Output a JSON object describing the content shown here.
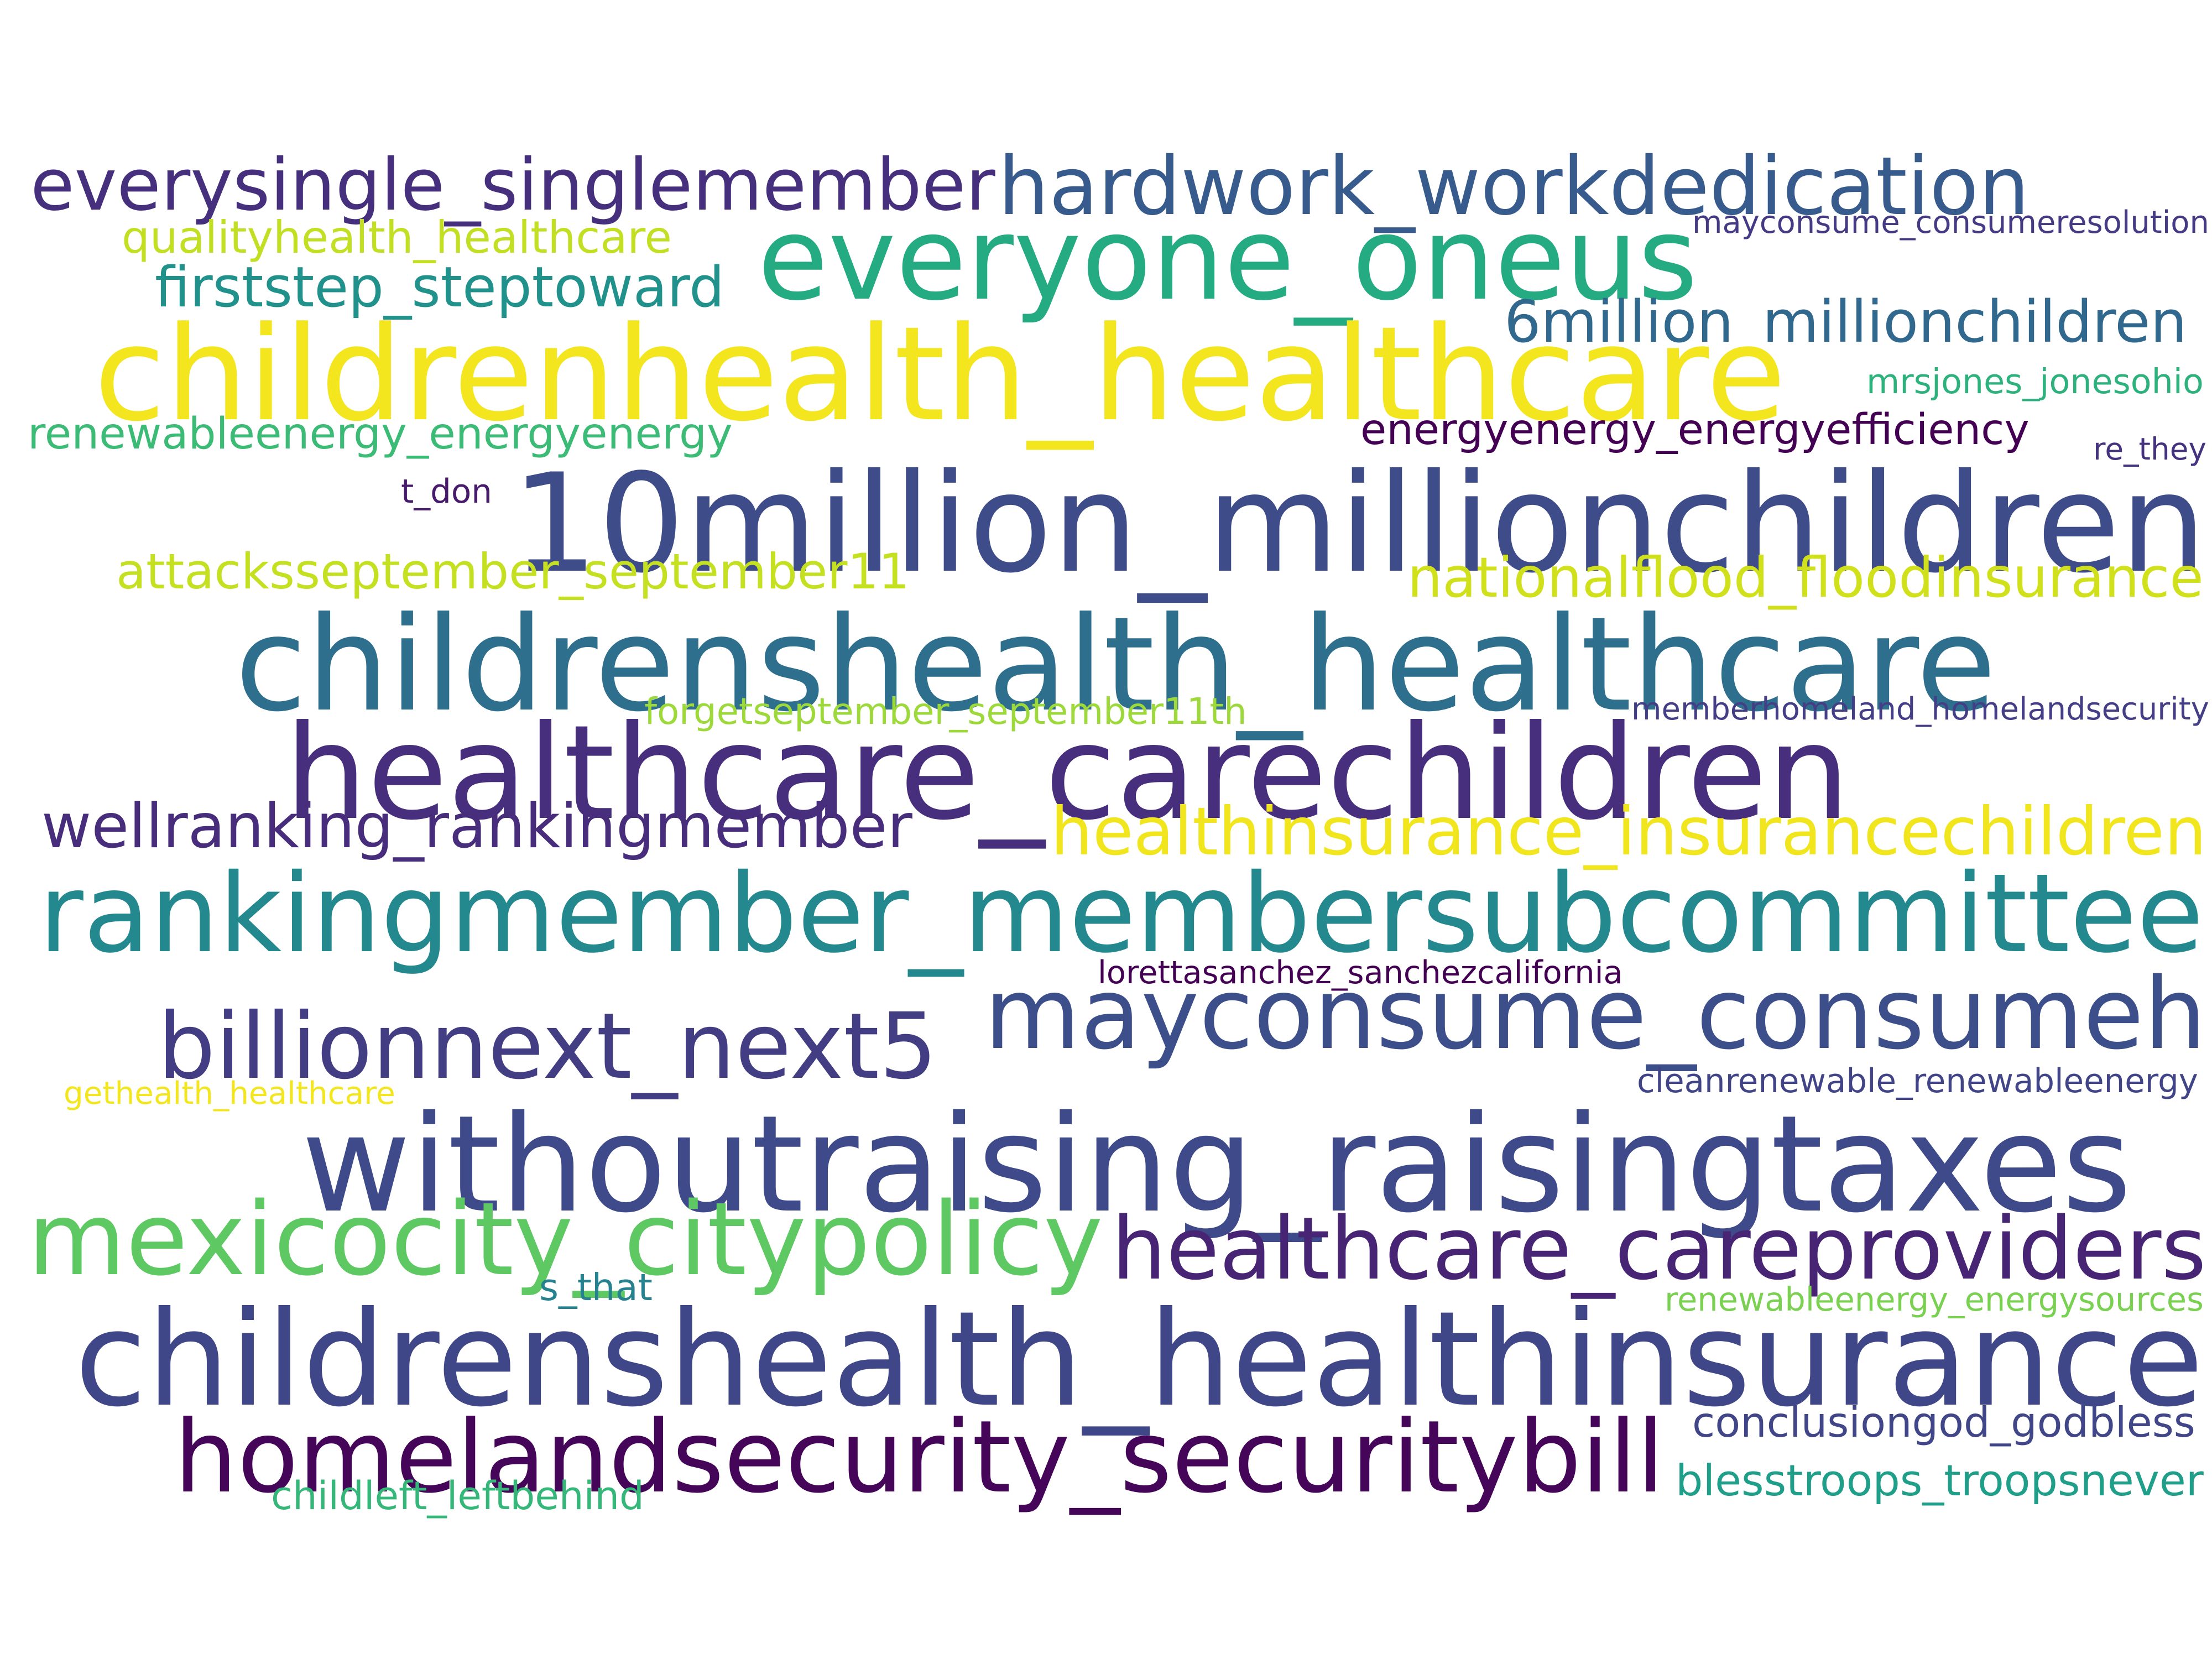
{
  "words": [
    {
      "text": "everysingle_singlemember",
      "color": "#46307e"
    },
    {
      "text": "hardwork_workdedication",
      "color": "#375b8d"
    },
    {
      "text": "qualityhealth_healthcare",
      "color": "#c2df23"
    },
    {
      "text": "mayconsume_consumeresolution",
      "color": "#443b84"
    },
    {
      "text": "everyone_oneus",
      "color": "#25ab82"
    },
    {
      "text": "firststep_steptoward",
      "color": "#21918c"
    },
    {
      "text": "6million_millionchildren",
      "color": "#31688e"
    },
    {
      "text": "childrenhealth_healthcare",
      "color": "#f4e61e"
    },
    {
      "text": "mrsjones_jonesohio",
      "color": "#2db27d"
    },
    {
      "text": "renewableenergy_energyenergy",
      "color": "#3bbb75"
    },
    {
      "text": "energyenergy_energyefficiency",
      "color": "#440154"
    },
    {
      "text": "re_they",
      "color": "#46337f"
    },
    {
      "text": "t_don",
      "color": "#481a6c"
    },
    {
      "text": "10million_millionchildren",
      "color": "#3e4c8a"
    },
    {
      "text": "attacksseptember_september11",
      "color": "#c5e021"
    },
    {
      "text": "nationalflood_floodinsurance",
      "color": "#d0e11c"
    },
    {
      "text": "childrenshealth_healthcare",
      "color": "#2e6f8e"
    },
    {
      "text": "forgetseptember_september11th",
      "color": "#9dd93b"
    },
    {
      "text": "memberhomeland_homelandsecurity",
      "color": "#433e85"
    },
    {
      "text": "healthcare_carechildren",
      "color": "#472f7d"
    },
    {
      "text": "wellranking_rankingmember",
      "color": "#472d7b"
    },
    {
      "text": "healthinsurance_insurancechildren",
      "color": "#f1e51d"
    },
    {
      "text": "rankingmember_membersubcommittee",
      "color": "#23898e"
    },
    {
      "text": "lorettasanchez_sanchezcalifornia",
      "color": "#440154"
    },
    {
      "text": "billionnext_next5",
      "color": "#433d84"
    },
    {
      "text": "mayconsume_consumeh",
      "color": "#3c4f8a"
    },
    {
      "text": "gethealth_healthcare",
      "color": "#f4e61e"
    },
    {
      "text": "cleanrenewable_renewableenergy",
      "color": "#414487"
    },
    {
      "text": "withoutraising_raisingtaxes",
      "color": "#3e4a89"
    },
    {
      "text": "mexicocity_citypolicy",
      "color": "#5ec962"
    },
    {
      "text": "healthcare_careproviders",
      "color": "#482475"
    },
    {
      "text": "s_that",
      "color": "#26828e"
    },
    {
      "text": "renewableenergy_energysources",
      "color": "#7ad151"
    },
    {
      "text": "childrenshealth_healthinsurance",
      "color": "#3f4788"
    },
    {
      "text": "conclusiongod_godbless",
      "color": "#404688"
    },
    {
      "text": "homelandsecurity_securitybill",
      "color": "#450559"
    },
    {
      "text": "blesstroops_troopsnever",
      "color": "#1f9e89"
    },
    {
      "text": "childleft_leftbehind",
      "color": "#35b779"
    }
  ]
}
